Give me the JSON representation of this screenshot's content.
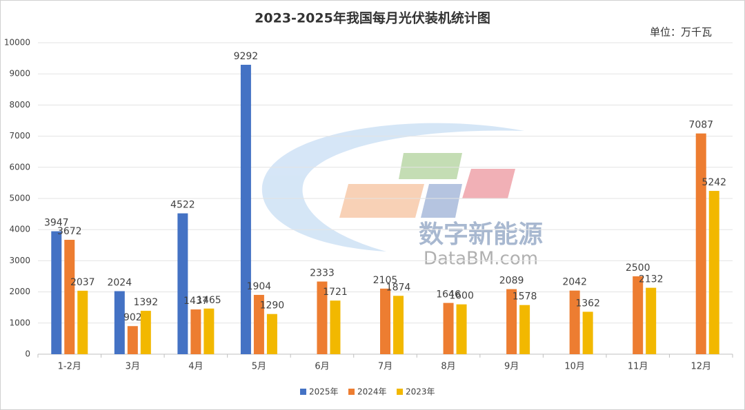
{
  "chart_data": {
    "type": "bar",
    "title": "2023-2025年我国每月光伏装机统计图",
    "unit": "单位：万千瓦",
    "watermark": [
      "数字新能源",
      "DataBM.com"
    ],
    "categories": [
      "1-2月",
      "3月",
      "4月",
      "5月",
      "6月",
      "7月",
      "8月",
      "9月",
      "10月",
      "11月",
      "12月"
    ],
    "series": [
      {
        "name": "2025年",
        "color": "#4472c4",
        "values": [
          3947,
          2024,
          4522,
          9292,
          null,
          null,
          null,
          null,
          null,
          null,
          null
        ]
      },
      {
        "name": "2024年",
        "color": "#ed7d31",
        "values": [
          3672,
          902,
          1437,
          1904,
          2333,
          2105,
          1646,
          2089,
          2042,
          2500,
          7087
        ]
      },
      {
        "name": "2023年",
        "color": "#f2b800",
        "values": [
          2037,
          1392,
          1465,
          1290,
          1721,
          1874,
          1600,
          1578,
          1362,
          2132,
          5242
        ]
      }
    ],
    "ylim": [
      0,
      10000
    ],
    "yticks": [
      0,
      1000,
      2000,
      3000,
      4000,
      5000,
      6000,
      7000,
      8000,
      9000,
      10000
    ],
    "grid": true,
    "legend": "bottom"
  }
}
